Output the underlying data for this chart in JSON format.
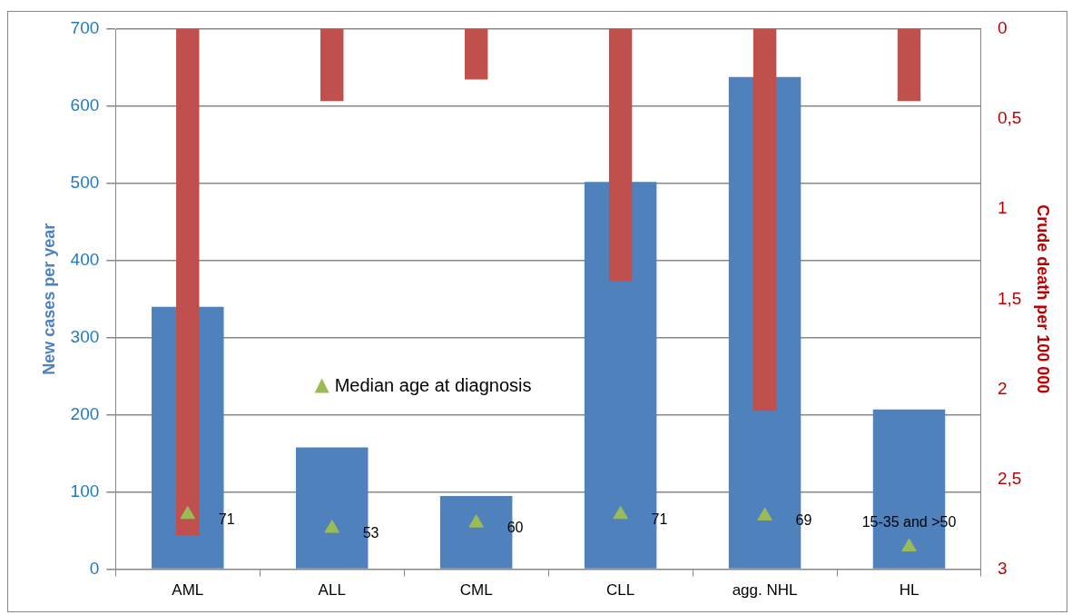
{
  "chart_data": {
    "type": "bar",
    "ylabel": "New cases per year",
    "y2label": "Crude death per 100 000",
    "categories": [
      "AML",
      "ALL",
      "CML",
      "CLL",
      "agg. NHL",
      "HL"
    ],
    "series": [
      {
        "color": "#4f81bd",
        "values": [
          340,
          158,
          95,
          502,
          638,
          207
        ]
      },
      {
        "axis": "y2",
        "color": "#c0504d",
        "values": [
          2.81,
          0.4,
          0.28,
          1.4,
          2.12,
          0.4
        ]
      },
      {
        "type": "scatter",
        "name": "Median age at diagnosis",
        "color": "#9bbb59",
        "values": [
          71,
          53,
          60,
          71,
          69,
          29
        ],
        "value_labels": [
          "71",
          "53",
          "60",
          "71",
          "69",
          "15-35 and >50"
        ]
      }
    ],
    "ylim": [
      0,
      700
    ],
    "yticks": [
      0,
      100,
      200,
      300,
      400,
      500,
      600,
      700
    ],
    "y2lim": [
      3,
      0
    ],
    "y2ticks": [
      0,
      {
        "value": 0.5,
        "label": "0,5"
      },
      1,
      {
        "value": 1.5,
        "label": "1,5"
      },
      2,
      {
        "value": 2.5,
        "label": "2,5"
      },
      3
    ],
    "grid": "y",
    "legend": "center",
    "marker": "triangle"
  }
}
